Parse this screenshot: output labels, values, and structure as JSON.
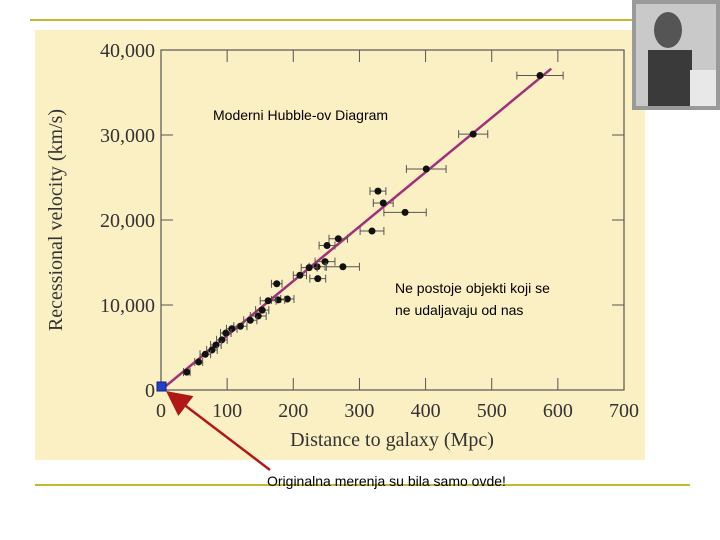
{
  "chart_data": {
    "type": "scatter",
    "x_label": "Distance to galaxy (Mpc)",
    "y_label": "Recessional velocity (km/s)",
    "annotations": [
      "Moderni Hubble-ov Diagram",
      "Ne postoje objekti koji se",
      "ne udaljavaju od nas",
      "Originalna merenja su bila samo ovde!"
    ],
    "x": [
      573,
      472,
      401,
      328,
      336,
      369,
      319,
      268,
      251,
      248,
      275,
      236,
      224,
      210,
      237,
      175,
      191,
      177,
      162,
      153,
      147,
      135,
      120,
      107,
      98,
      92,
      83,
      77,
      67,
      57,
      39
    ],
    "values": [
      37000,
      30100,
      26000,
      23400,
      22000,
      20900,
      18700,
      17800,
      17000,
      15100,
      14500,
      14500,
      14400,
      13500,
      13100,
      12500,
      10700,
      10600,
      10500,
      9400,
      8700,
      8200,
      7500,
      7200,
      6700,
      5900,
      5300,
      4700,
      4200,
      3300,
      2100
    ],
    "xerr": [
      35,
      22,
      30,
      12,
      15,
      32,
      18,
      14,
      12,
      15,
      25,
      12,
      12,
      10,
      12,
      8,
      10,
      10,
      12,
      10,
      12,
      10,
      10,
      8,
      8,
      8,
      8,
      8,
      8,
      6,
      5
    ],
    "color": "#111111",
    "fit_line": {
      "x": [
        0,
        590
      ],
      "values": [
        0,
        37800
      ],
      "color": "#a0307a"
    },
    "xlim": [
      0,
      700
    ],
    "ylim": [
      0,
      40000
    ],
    "xticks": [
      0,
      100,
      200,
      300,
      400,
      500,
      600,
      700
    ],
    "yticks": [
      0,
      {
        "value": 10000,
        "label": "10,000"
      },
      {
        "value": 20000,
        "label": "20,000"
      },
      {
        "value": 30000,
        "label": "30,000"
      },
      {
        "value": 40000,
        "label": "40,000"
      }
    ]
  }
}
